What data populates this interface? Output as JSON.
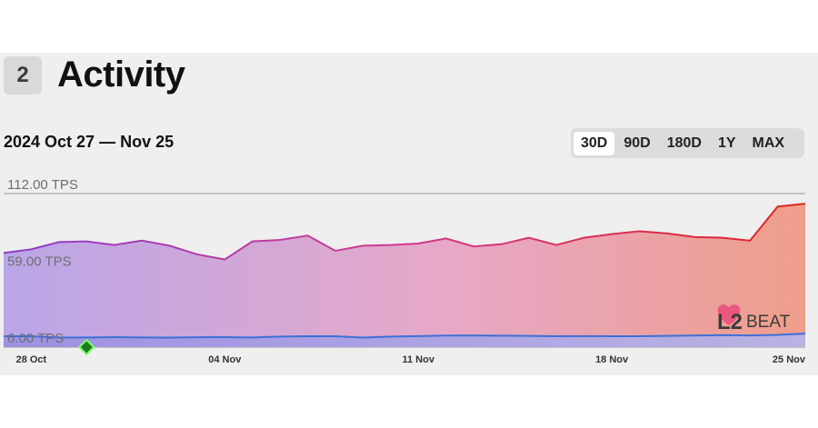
{
  "section": {
    "number": "2",
    "title": "Activity"
  },
  "date_range": "2024 Oct 27 — Nov 25",
  "ranges": [
    {
      "label": "30D",
      "active": true
    },
    {
      "label": "90D",
      "active": false
    },
    {
      "label": "180D",
      "active": false
    },
    {
      "label": "1Y",
      "active": false
    },
    {
      "label": "MAX",
      "active": false
    }
  ],
  "logo": {
    "text": "L2BEAT"
  },
  "chart_data": {
    "type": "area",
    "y_ticks": [
      {
        "value": 112,
        "label": "112.00 TPS"
      },
      {
        "value": 59,
        "label": "59.00 TPS"
      },
      {
        "value": 6,
        "label": "6.00 TPS"
      }
    ],
    "ylim": [
      6,
      112
    ],
    "x_ticks": [
      "28 Oct",
      "04 Nov",
      "11 Nov",
      "18 Nov",
      "25 Nov"
    ],
    "x_tick_days": [
      1,
      8,
      15,
      22,
      29
    ],
    "x_range_days": [
      0,
      29
    ],
    "series": [
      {
        "values": [
          71.0,
          73.5,
          78.5,
          79.0,
          76.5,
          79.5,
          76.0,
          70.0,
          66.5,
          79.0,
          80.0,
          83.0,
          72.5,
          76.0,
          76.5,
          77.5,
          81.0,
          75.5,
          77.0,
          81.5,
          76.5,
          81.5,
          84.0,
          86.0,
          84.5,
          82.0,
          81.5,
          79.5,
          103.0,
          105.0
        ]
      },
      {
        "values": [
          13.5,
          13.5,
          12.7,
          12.7,
          12.9,
          12.7,
          12.6,
          12.8,
          12.9,
          12.7,
          13.3,
          13.5,
          13.5,
          12.6,
          13.3,
          13.6,
          14.0,
          14.0,
          13.9,
          13.8,
          13.5,
          13.6,
          13.5,
          13.5,
          13.8,
          14.0,
          14.3,
          14.1,
          14.5,
          15.3
        ]
      }
    ],
    "marker": {
      "day": 3,
      "value": 6
    },
    "grid": true
  }
}
